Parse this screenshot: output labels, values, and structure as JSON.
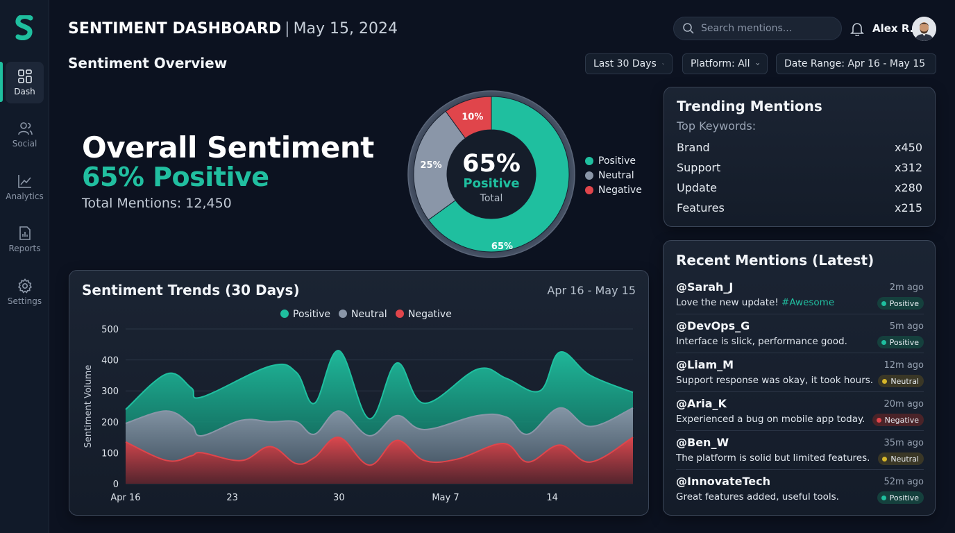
{
  "header": {
    "title": "SENTIMENT DASHBOARD",
    "separator": "|",
    "date": "May 15, 2024",
    "search_placeholder": "Search mentions...",
    "user_name": "Alex R."
  },
  "sidebar": {
    "items": [
      {
        "label": "Dash",
        "icon": "dashboard-icon",
        "active": true
      },
      {
        "label": "Social",
        "icon": "users-icon",
        "active": false
      },
      {
        "label": "Analytics",
        "icon": "chart-line-icon",
        "active": false
      },
      {
        "label": "Reports",
        "icon": "report-icon",
        "active": false
      },
      {
        "label": "Settings",
        "icon": "gear-icon",
        "active": false
      }
    ]
  },
  "overview": {
    "section_title": "Sentiment Overview",
    "filters": [
      "Last 30 Days",
      "Platform: All",
      "Date Range: Apr 16 - May 15"
    ],
    "overall_title": "Overall Sentiment",
    "overall_value": "65% Positive",
    "total_mentions": "Total Mentions: 12,450"
  },
  "donut": {
    "center_value": "65%",
    "center_label": "Positive",
    "center_sub": "Total",
    "slices": [
      {
        "name": "Positive",
        "value": 65,
        "label": "65%",
        "color": "#1fbf9f"
      },
      {
        "name": "Neutral",
        "value": 25,
        "label": "25%",
        "color": "#8a96a8"
      },
      {
        "name": "Negative",
        "value": 10,
        "label": "10%",
        "color": "#e0454b"
      }
    ]
  },
  "trending": {
    "title": "Trending Mentions",
    "subtitle": "Top Keywords:",
    "keywords": [
      {
        "word": "Brand",
        "count": "x450"
      },
      {
        "word": "Support",
        "count": "x312"
      },
      {
        "word": "Update",
        "count": "x280"
      },
      {
        "word": "Features",
        "count": "x215"
      }
    ]
  },
  "recent": {
    "title": "Recent Mentions (Latest)",
    "mentions": [
      {
        "handle": "@Sarah_J",
        "time": "2m ago",
        "text": "Love the new update! ",
        "hashtag": "#Awesome",
        "sentiment": "Positive"
      },
      {
        "handle": "@DevOps_G",
        "time": "5m ago",
        "text": "Interface is slick, performance good.",
        "hashtag": "",
        "sentiment": "Positive"
      },
      {
        "handle": "@Liam_M",
        "time": "12m ago",
        "text": "Support response was okay, it took hours.",
        "hashtag": "",
        "sentiment": "Neutral"
      },
      {
        "handle": "@Aria_K",
        "time": "20m ago",
        "text": "Experienced a bug on mobile app today.",
        "hashtag": "",
        "sentiment": "Negative"
      },
      {
        "handle": "@Ben_W",
        "time": "35m ago",
        "text": "The platform is solid but limited features.",
        "hashtag": "",
        "sentiment": "Neutral"
      },
      {
        "handle": "@InnovateTech",
        "time": "52m ago",
        "text": "Great features added, useful tools.",
        "hashtag": "",
        "sentiment": "Positive"
      }
    ]
  },
  "colors": {
    "positive": "#1fbf9f",
    "neutral": "#8a96a8",
    "negative": "#e0454b",
    "neutral_badge": "#d6b62a"
  },
  "chart_data": {
    "type": "area",
    "title": "Sentiment Trends (30 Days)",
    "date_range": "Apr 16 - May 15",
    "ylabel": "Sentiment Volume",
    "ylim": [
      0,
      500
    ],
    "yticks": [
      0,
      100,
      200,
      300,
      400,
      500
    ],
    "x_ticks": [
      {
        "day": 0,
        "label": "Apr 16"
      },
      {
        "day": 7,
        "label": "23"
      },
      {
        "day": 14,
        "label": "30"
      },
      {
        "day": 21,
        "label": "May 7"
      },
      {
        "day": 28,
        "label": "14"
      }
    ],
    "x_max": 33.3,
    "grid": true,
    "legend_position": "top-center",
    "series": [
      {
        "name": "Positive",
        "color": "#1fbf9f",
        "points": [
          [
            0,
            240
          ],
          [
            2.7,
            355
          ],
          [
            4.3,
            310
          ],
          [
            5.0,
            280
          ],
          [
            9.5,
            380
          ],
          [
            11.2,
            360
          ],
          [
            12.4,
            260
          ],
          [
            14.0,
            430
          ],
          [
            16.0,
            210
          ],
          [
            17.8,
            390
          ],
          [
            19.6,
            260
          ],
          [
            23.1,
            370
          ],
          [
            25.0,
            340
          ],
          [
            27.2,
            300
          ],
          [
            28.5,
            425
          ],
          [
            30.5,
            350
          ],
          [
            33.3,
            295
          ]
        ]
      },
      {
        "name": "Neutral",
        "color": "#8a96a8",
        "points": [
          [
            0,
            195
          ],
          [
            2.7,
            235
          ],
          [
            4.3,
            190
          ],
          [
            5.0,
            155
          ],
          [
            7.6,
            205
          ],
          [
            9.5,
            200
          ],
          [
            11.2,
            200
          ],
          [
            12.4,
            160
          ],
          [
            14.0,
            235
          ],
          [
            16.0,
            155
          ],
          [
            17.8,
            220
          ],
          [
            19.6,
            175
          ],
          [
            23.1,
            220
          ],
          [
            25.0,
            215
          ],
          [
            26.4,
            160
          ],
          [
            28.5,
            245
          ],
          [
            30.5,
            185
          ],
          [
            33.3,
            245
          ]
        ]
      },
      {
        "name": "Negative",
        "color": "#e0454b",
        "points": [
          [
            0,
            135
          ],
          [
            2.7,
            75
          ],
          [
            4.3,
            90
          ],
          [
            5.0,
            100
          ],
          [
            7.6,
            75
          ],
          [
            9.5,
            120
          ],
          [
            11.2,
            65
          ],
          [
            12.4,
            85
          ],
          [
            14.0,
            150
          ],
          [
            16.0,
            60
          ],
          [
            17.8,
            140
          ],
          [
            19.6,
            75
          ],
          [
            21.8,
            80
          ],
          [
            24.8,
            130
          ],
          [
            26.4,
            70
          ],
          [
            28.5,
            125
          ],
          [
            30.5,
            70
          ],
          [
            33.3,
            150
          ]
        ]
      }
    ]
  }
}
